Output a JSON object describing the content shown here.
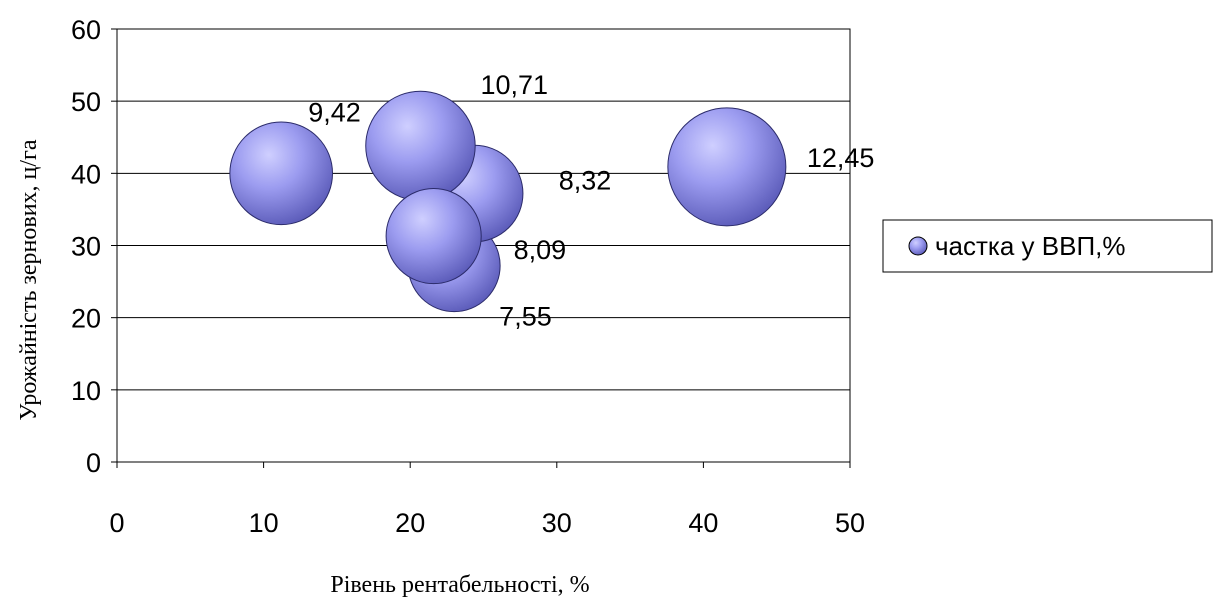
{
  "chart_data": {
    "type": "scatter",
    "subtype": "bubble",
    "xlabel": "Рівень рентабельності, %",
    "ylabel": "Урожайність зернових, ц/га",
    "xlim": [
      0,
      50
    ],
    "ylim": [
      0,
      60
    ],
    "xticks": [
      "0",
      "10",
      "20",
      "30",
      "40",
      "50"
    ],
    "yticks": [
      "0",
      "10",
      "20",
      "30",
      "40",
      "50",
      "60"
    ],
    "grid": "horizontal",
    "legend_position": "right",
    "bubble_color": "#8a8ae0",
    "series": [
      {
        "name": "частка у ВВП,%",
        "points": [
          {
            "x": 11.2,
            "y": 40.0,
            "size": 9.42,
            "label": "9,42"
          },
          {
            "x": 20.7,
            "y": 43.8,
            "size": 10.71,
            "label": "10,71"
          },
          {
            "x": 24.4,
            "y": 37.2,
            "size": 8.32,
            "label": "8,32"
          },
          {
            "x": 21.6,
            "y": 31.3,
            "size": 8.09,
            "label": "8,09"
          },
          {
            "x": 23.0,
            "y": 27.2,
            "size": 7.55,
            "label": "7,55"
          },
          {
            "x": 41.6,
            "y": 40.9,
            "size": 12.45,
            "label": "12,45"
          }
        ]
      }
    ]
  }
}
